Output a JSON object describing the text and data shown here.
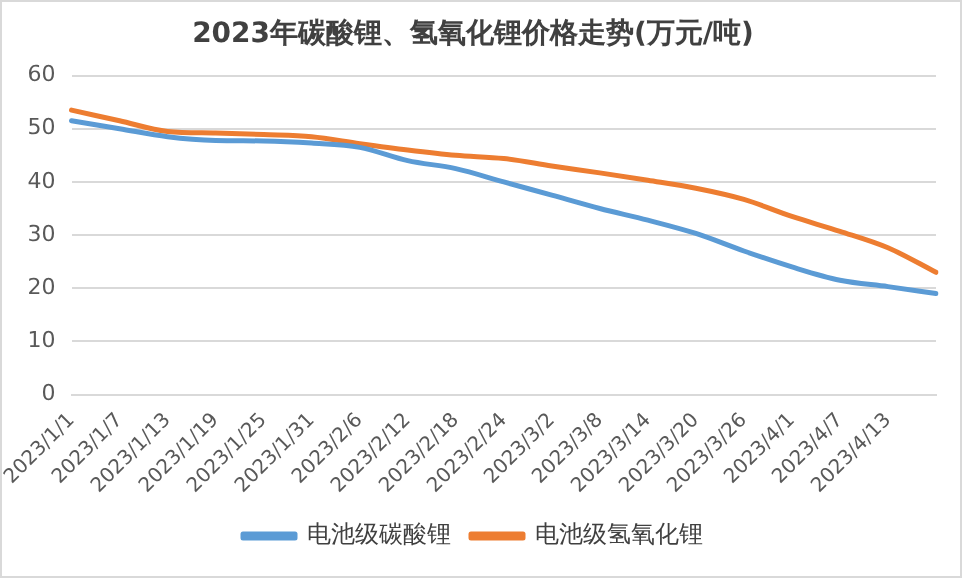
{
  "chart_data": {
    "type": "line",
    "title": "2023年碳酸锂、氢氧化锂价格走势(万元/吨)",
    "categories": [
      "2023/1/1",
      "2023/1/7",
      "2023/1/13",
      "2023/1/19",
      "2023/1/25",
      "2023/1/31",
      "2023/2/6",
      "2023/2/12",
      "2023/2/18",
      "2023/2/24",
      "2023/3/2",
      "2023/3/8",
      "2023/3/14",
      "2023/3/20",
      "2023/3/26",
      "2023/4/1",
      "2023/4/7",
      "2023/4/13",
      null
    ],
    "series": [
      {
        "name": "电池级碳酸锂",
        "color": "#5b9bd5",
        "values": [
          51.5,
          50,
          48.5,
          47.8,
          47.7,
          47.3,
          46.5,
          44,
          42.5,
          40,
          37.5,
          35,
          32.8,
          30.3,
          27,
          24,
          21.5,
          20.3,
          19
        ]
      },
      {
        "name": "电池级氢氧化锂",
        "color": "#ed7d31",
        "values": [
          53.5,
          51.5,
          49.5,
          49.2,
          48.9,
          48.5,
          47.2,
          46,
          45,
          44.4,
          43,
          41.7,
          40.3,
          38.8,
          36.7,
          33.5,
          30.7,
          27.6,
          23
        ]
      }
    ],
    "ylim": [
      0,
      60
    ],
    "yticks": [
      0,
      10,
      20,
      30,
      40,
      50,
      60
    ],
    "grid": "y",
    "legend": "bottom",
    "marker": "none",
    "line_style": "solid"
  }
}
